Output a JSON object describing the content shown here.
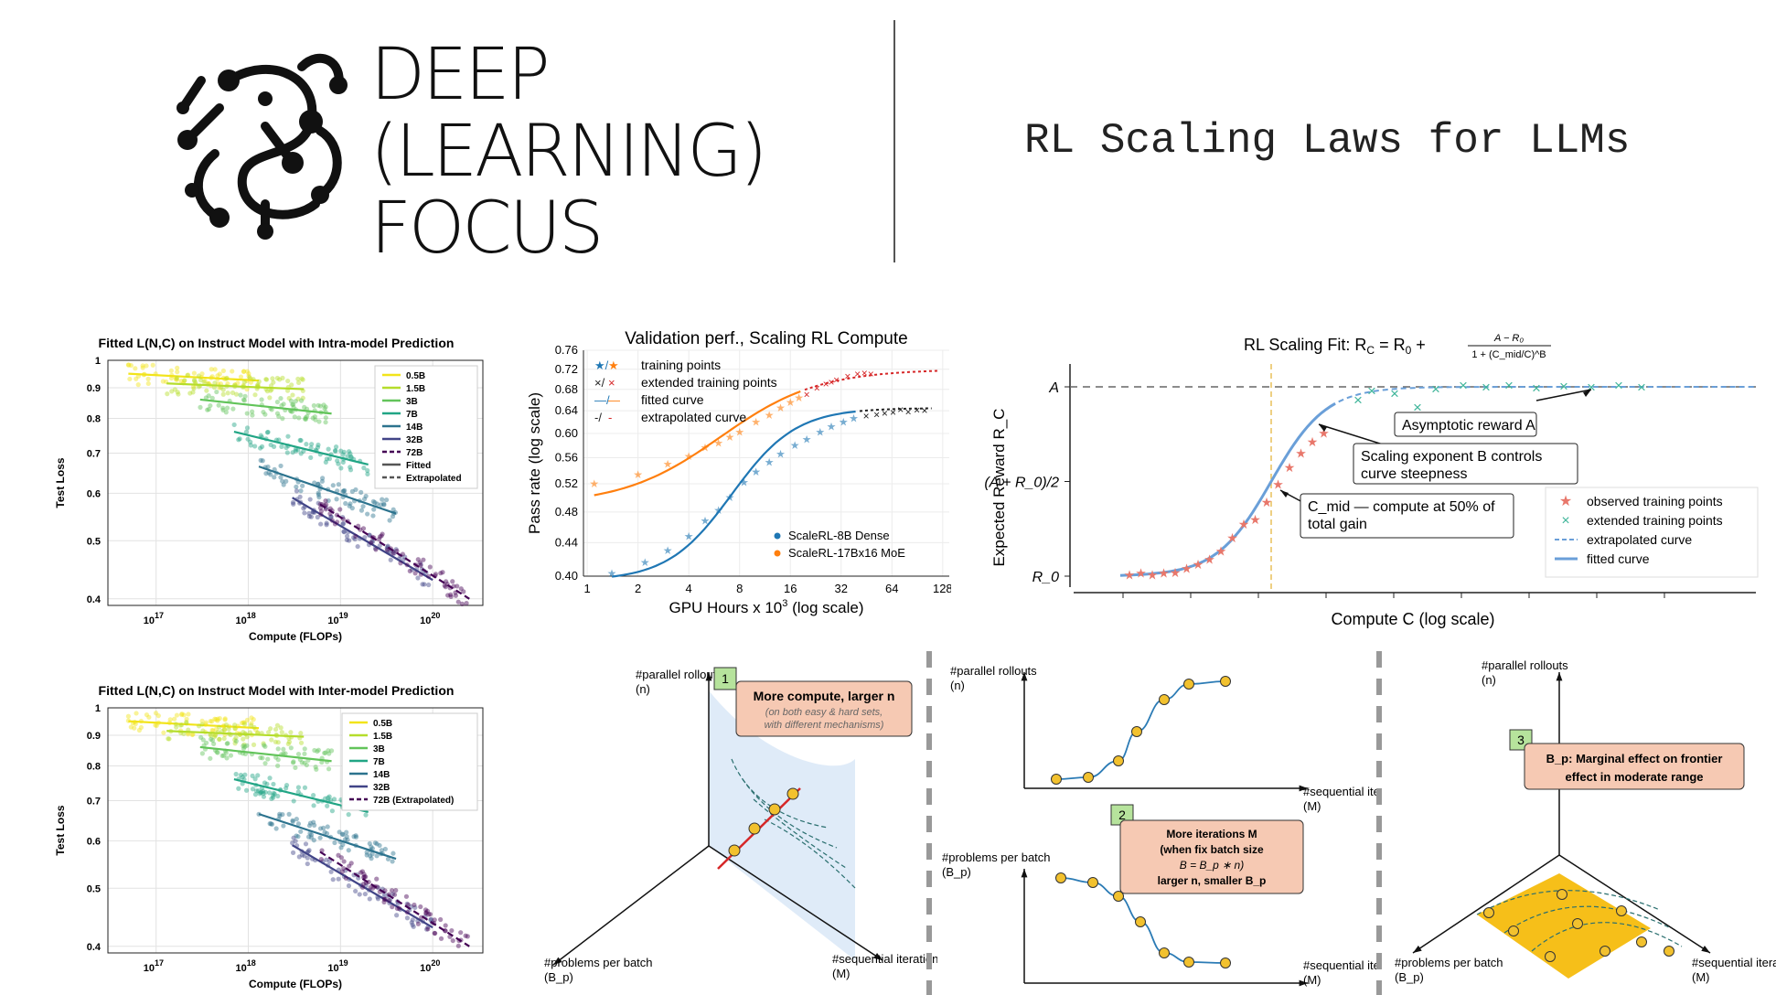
{
  "header": {
    "logo_lines": [
      "DEEP",
      "(LEARNING)",
      "FOCUS"
    ],
    "title": "RL Scaling Laws for LLMs"
  },
  "chart_data": [
    {
      "type": "scatter",
      "title": "Fitted L(N,C) on Instruct Model with Intra-model Prediction",
      "xlabel": "Compute (FLOPs)",
      "ylabel": "Test Loss",
      "xscale": "log",
      "yscale": "log",
      "xticks": [
        "10^17",
        "10^18",
        "10^19",
        "10^20"
      ],
      "yticks": [
        "1",
        "0.9",
        "0.8",
        "0.7",
        "0.6",
        "0.5",
        "0.4"
      ],
      "xlim": [
        3e+16,
        3.5e+20
      ],
      "ylim": [
        0.39,
        1.0
      ],
      "legend": [
        "0.5B",
        "1.5B",
        "3B",
        "7B",
        "14B",
        "32B",
        "72B",
        "Fitted",
        "Extrapolated"
      ],
      "legend_position": "top-right",
      "grid": true,
      "series": [
        {
          "name": "0.5B",
          "color": "#f2e41a",
          "x_range": [
            5e+16,
            1.3e+18
          ],
          "y_range": [
            0.95,
            0.925
          ],
          "style": "fitted"
        },
        {
          "name": "1.5B",
          "color": "#b5dd2b",
          "x_range": [
            1.3e+17,
            4e+18
          ],
          "y_range": [
            0.915,
            0.895
          ],
          "style": "fitted"
        },
        {
          "name": "3B",
          "color": "#62c45a",
          "x_range": [
            3e+17,
            8e+18
          ],
          "y_range": [
            0.86,
            0.815
          ],
          "style": "fitted"
        },
        {
          "name": "7B",
          "color": "#21a585",
          "x_range": [
            7e+17,
            2e+19
          ],
          "y_range": [
            0.76,
            0.67
          ],
          "style": "fitted"
        },
        {
          "name": "14B",
          "color": "#2c738e",
          "x_range": [
            1.3e+18,
            4e+19
          ],
          "y_range": [
            0.665,
            0.555
          ],
          "style": "fitted"
        },
        {
          "name": "32B",
          "color": "#414487",
          "x_range": [
            3e+18,
            1e+20
          ],
          "y_range": [
            0.59,
            0.43
          ],
          "style": "fitted"
        },
        {
          "name": "72B",
          "color": "#440154",
          "x_range": [
            6e+18,
            2.5e+20
          ],
          "y_range": [
            0.575,
            0.4
          ],
          "style": "extrapolated"
        }
      ]
    },
    {
      "type": "scatter",
      "title": "Fitted L(N,C) on Instruct Model with Inter-model Prediction",
      "xlabel": "Compute (FLOPs)",
      "ylabel": "Test Loss",
      "xscale": "log",
      "yscale": "log",
      "xticks": [
        "10^17",
        "10^18",
        "10^19",
        "10^20"
      ],
      "yticks": [
        "1",
        "0.9",
        "0.8",
        "0.7",
        "0.6",
        "0.5",
        "0.4"
      ],
      "xlim": [
        3e+16,
        3.5e+20
      ],
      "ylim": [
        0.39,
        1.0
      ],
      "legend": [
        "0.5B",
        "1.5B",
        "3B",
        "7B",
        "14B",
        "32B",
        "72B (Extrapolated)"
      ],
      "legend_position": "top-right",
      "grid": true,
      "series": [
        {
          "name": "0.5B",
          "color": "#f2e41a",
          "x_range": [
            5e+16,
            1.3e+18
          ],
          "y_range": [
            0.95,
            0.925
          ],
          "style": "fitted"
        },
        {
          "name": "1.5B",
          "color": "#b5dd2b",
          "x_range": [
            1.3e+17,
            4e+18
          ],
          "y_range": [
            0.915,
            0.895
          ],
          "style": "fitted"
        },
        {
          "name": "3B",
          "color": "#62c45a",
          "x_range": [
            3e+17,
            8e+18
          ],
          "y_range": [
            0.86,
            0.815
          ],
          "style": "fitted"
        },
        {
          "name": "7B",
          "color": "#21a585",
          "x_range": [
            7e+17,
            2e+19
          ],
          "y_range": [
            0.76,
            0.67
          ],
          "style": "fitted"
        },
        {
          "name": "14B",
          "color": "#2c738e",
          "x_range": [
            1.3e+18,
            4e+19
          ],
          "y_range": [
            0.665,
            0.56
          ],
          "style": "fitted"
        },
        {
          "name": "32B",
          "color": "#414487",
          "x_range": [
            3e+18,
            1e+20
          ],
          "y_range": [
            0.59,
            0.43
          ],
          "style": "fitted"
        },
        {
          "name": "72B (Extrapolated)",
          "color": "#440154",
          "x_range": [
            6e+18,
            2.5e+20
          ],
          "y_range": [
            0.575,
            0.4
          ],
          "style": "extrapolated"
        }
      ]
    },
    {
      "type": "line",
      "title": "Validation perf., Scaling RL Compute",
      "xlabel": "GPU Hours x 10^3 (log scale)",
      "ylabel": "Pass rate (log scale)",
      "xscale": "log",
      "yscale": "log",
      "xticks": [
        1,
        2,
        4,
        8,
        16,
        32,
        64,
        128
      ],
      "yticks": [
        "0.40",
        "0.44",
        "0.48",
        "0.52",
        "0.56",
        "0.60",
        "0.64",
        "0.68",
        "0.72",
        "0.76"
      ],
      "xlim": [
        0.95,
        140
      ],
      "ylim": [
        0.4,
        0.76
      ],
      "grid": true,
      "legend_top": [
        "training points",
        "extended training points",
        "fitted curve",
        "extrapolated curve"
      ],
      "legend_bottom": [
        "ScaleRL-8B Dense",
        "ScaleRL-17Bx16 MoE"
      ],
      "series": [
        {
          "name": "ScaleRL-8B Dense",
          "color": "#1f77b4",
          "training_points": [
            [
              1.4,
              0.403
            ],
            [
              2.2,
              0.416
            ],
            [
              3,
              0.43
            ],
            [
              4,
              0.448
            ],
            [
              5,
              0.468
            ],
            [
              6,
              0.482
            ],
            [
              7,
              0.5
            ],
            [
              8.5,
              0.522
            ],
            [
              10,
              0.538
            ],
            [
              12,
              0.553
            ],
            [
              14,
              0.566
            ],
            [
              17,
              0.58
            ],
            [
              20,
              0.59
            ],
            [
              24,
              0.602
            ],
            [
              28,
              0.612
            ],
            [
              33,
              0.62
            ],
            [
              38,
              0.626
            ]
          ],
          "extended_points": [
            [
              45,
              0.63
            ],
            [
              52,
              0.633
            ],
            [
              58,
              0.635
            ],
            [
              65,
              0.637
            ],
            [
              72,
              0.642
            ],
            [
              80,
              0.638
            ],
            [
              90,
              0.641
            ],
            [
              100,
              0.64
            ]
          ]
        },
        {
          "name": "ScaleRL-17Bx16 MoE",
          "color": "#ff7f0e",
          "training_points": [
            [
              1.1,
              0.52
            ],
            [
              2,
              0.534
            ],
            [
              3,
              0.55
            ],
            [
              4,
              0.562
            ],
            [
              5,
              0.576
            ],
            [
              6,
              0.584
            ],
            [
              7,
              0.594
            ],
            [
              8,
              0.602
            ],
            [
              10,
              0.62
            ],
            [
              12,
              0.632
            ],
            [
              14,
              0.645
            ],
            [
              16,
              0.655
            ],
            [
              18,
              0.664
            ]
          ],
          "extended_points": [
            [
              20,
              0.67
            ],
            [
              23,
              0.682
            ],
            [
              26,
              0.69
            ],
            [
              28,
              0.694
            ],
            [
              30,
              0.698
            ],
            [
              35,
              0.706
            ],
            [
              40,
              0.71
            ],
            [
              44,
              0.712
            ],
            [
              48,
              0.71
            ]
          ]
        }
      ]
    },
    {
      "type": "line",
      "title": "RL Scaling Fit: R_C = R_0 + (A − R_0) / (1 + (C_mid/C)^B)",
      "xlabel": "Compute C (log scale)",
      "ylabel": "Expected Reward R_C",
      "yticks": [
        "R_0",
        "(A + R_0)/2",
        "A"
      ],
      "legend": [
        "observed training points",
        "extended training points",
        "extrapolated curve",
        "fitted curve"
      ],
      "legend_position": "bottom-right",
      "annotations": [
        "Asymptotic reward A",
        "Scaling exponent B controls curve steepness",
        "C_mid — compute at 50% of total gain"
      ],
      "series": [
        {
          "name": "fitted curve",
          "color": "#6a9fd8"
        },
        {
          "name": "extrapolated curve",
          "color": "#6a9fd8"
        },
        {
          "name": "observed training points",
          "color": "#e8776b"
        },
        {
          "name": "extended training points",
          "color": "#3fb59a"
        }
      ]
    }
  ],
  "diagrams": {
    "labels": {
      "parallel_rollouts": "#parallel rollouts (n)",
      "problems_per_batch": "#problems per batch (B_p)",
      "sequential_iterations": "#sequential iterations (M)"
    },
    "panel1": {
      "badge": "1",
      "title": "More compute, larger n",
      "subtitle": "(on both easy & hard sets, with different mechanisms)"
    },
    "panel2": {
      "badge": "2",
      "line1": "More iterations M",
      "line2": "(when fix batch size",
      "line3": "B = B_p ∗ n)",
      "line4": "larger n, smaller B_p"
    },
    "panel3": {
      "badge": "3",
      "line1": "B_p: Marginal effect on frontier",
      "line2": "effect in moderate range"
    }
  },
  "colors": {
    "callout_fill": "#f6c9b3",
    "callout_border": "#333333",
    "badge_fill": "#b6e39c",
    "shade_fill": "#dce9f7",
    "yellow_plane": "#f5b800",
    "marker_fill": "#f2c12e"
  }
}
